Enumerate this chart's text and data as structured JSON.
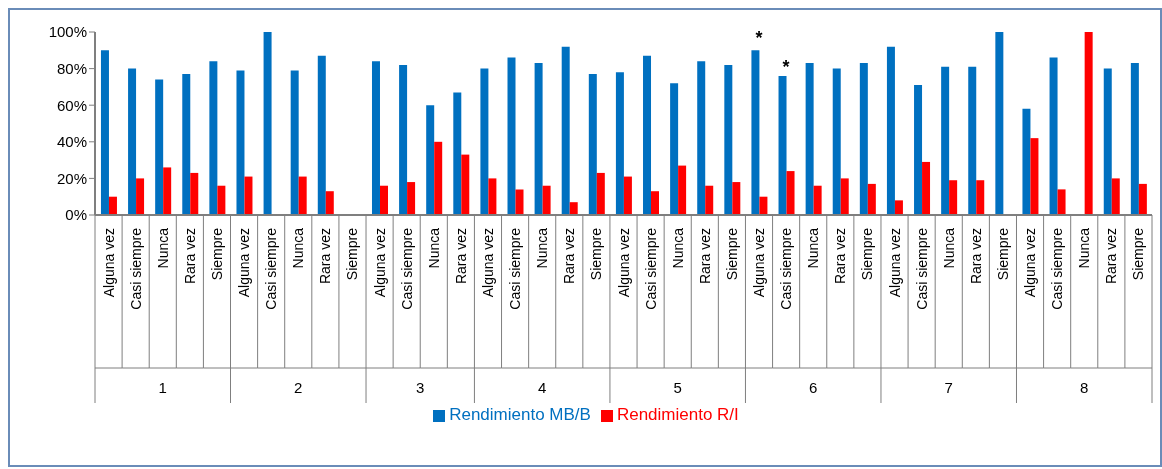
{
  "chart_data": {
    "type": "bar",
    "categories": [
      "Alguna vez",
      "Casi siempre",
      "Nunca",
      "Rara vez",
      "Siempre",
      "Alguna vez",
      "Casi siempre",
      "Nunca",
      "Rara vez",
      "Siempre",
      "Alguna vez",
      "Casi siempre",
      "Nunca",
      "Rara vez",
      "Alguna vez",
      "Casi siempre",
      "Nunca",
      "Rara vez",
      "Siempre",
      "Alguna vez",
      "Casi siempre",
      "Nunca",
      "Rara vez",
      "Siempre",
      "Alguna vez",
      "Casi siempre",
      "Nunca",
      "Rara vez",
      "Siempre",
      "Alguna vez",
      "Casi siempre",
      "Nunca",
      "Rara vez",
      "Siempre",
      "Alguna vez",
      "Casi siempre",
      "Nunca",
      "Rara vez",
      "Siempre"
    ],
    "series": [
      {
        "name": "Rendimiento MB/B",
        "color": "#0070c0",
        "values": [
          90,
          80,
          74,
          77,
          84,
          79,
          100,
          79,
          87,
          0,
          84,
          82,
          60,
          67,
          80,
          86,
          83,
          92,
          77,
          78,
          87,
          72,
          84,
          82,
          90,
          76,
          83,
          80,
          83,
          92,
          71,
          81,
          81,
          100,
          58,
          86,
          0,
          80,
          83
        ]
      },
      {
        "name": "Rendimiento R/I",
        "color": "#ff0000",
        "values": [
          10,
          20,
          26,
          23,
          16,
          21,
          0,
          21,
          13,
          0,
          16,
          18,
          40,
          33,
          20,
          14,
          16,
          7,
          23,
          21,
          13,
          27,
          16,
          18,
          10,
          24,
          16,
          20,
          17,
          8,
          29,
          19,
          19,
          0,
          42,
          14,
          100,
          20,
          17
        ]
      }
    ],
    "ylim": [
      0,
      100
    ],
    "yticks": [
      {
        "value": 0,
        "label": "0%"
      },
      {
        "value": 20,
        "label": "20%"
      },
      {
        "value": 40,
        "label": "40%"
      },
      {
        "value": 60,
        "label": "60%"
      },
      {
        "value": 80,
        "label": "80%"
      },
      {
        "value": 100,
        "label": "100%"
      }
    ],
    "annotations": [
      "1",
      "2",
      "3",
      "4",
      "5",
      "6",
      "7",
      "8",
      "*",
      "*"
    ],
    "grid": false,
    "legend": "bottom"
  }
}
